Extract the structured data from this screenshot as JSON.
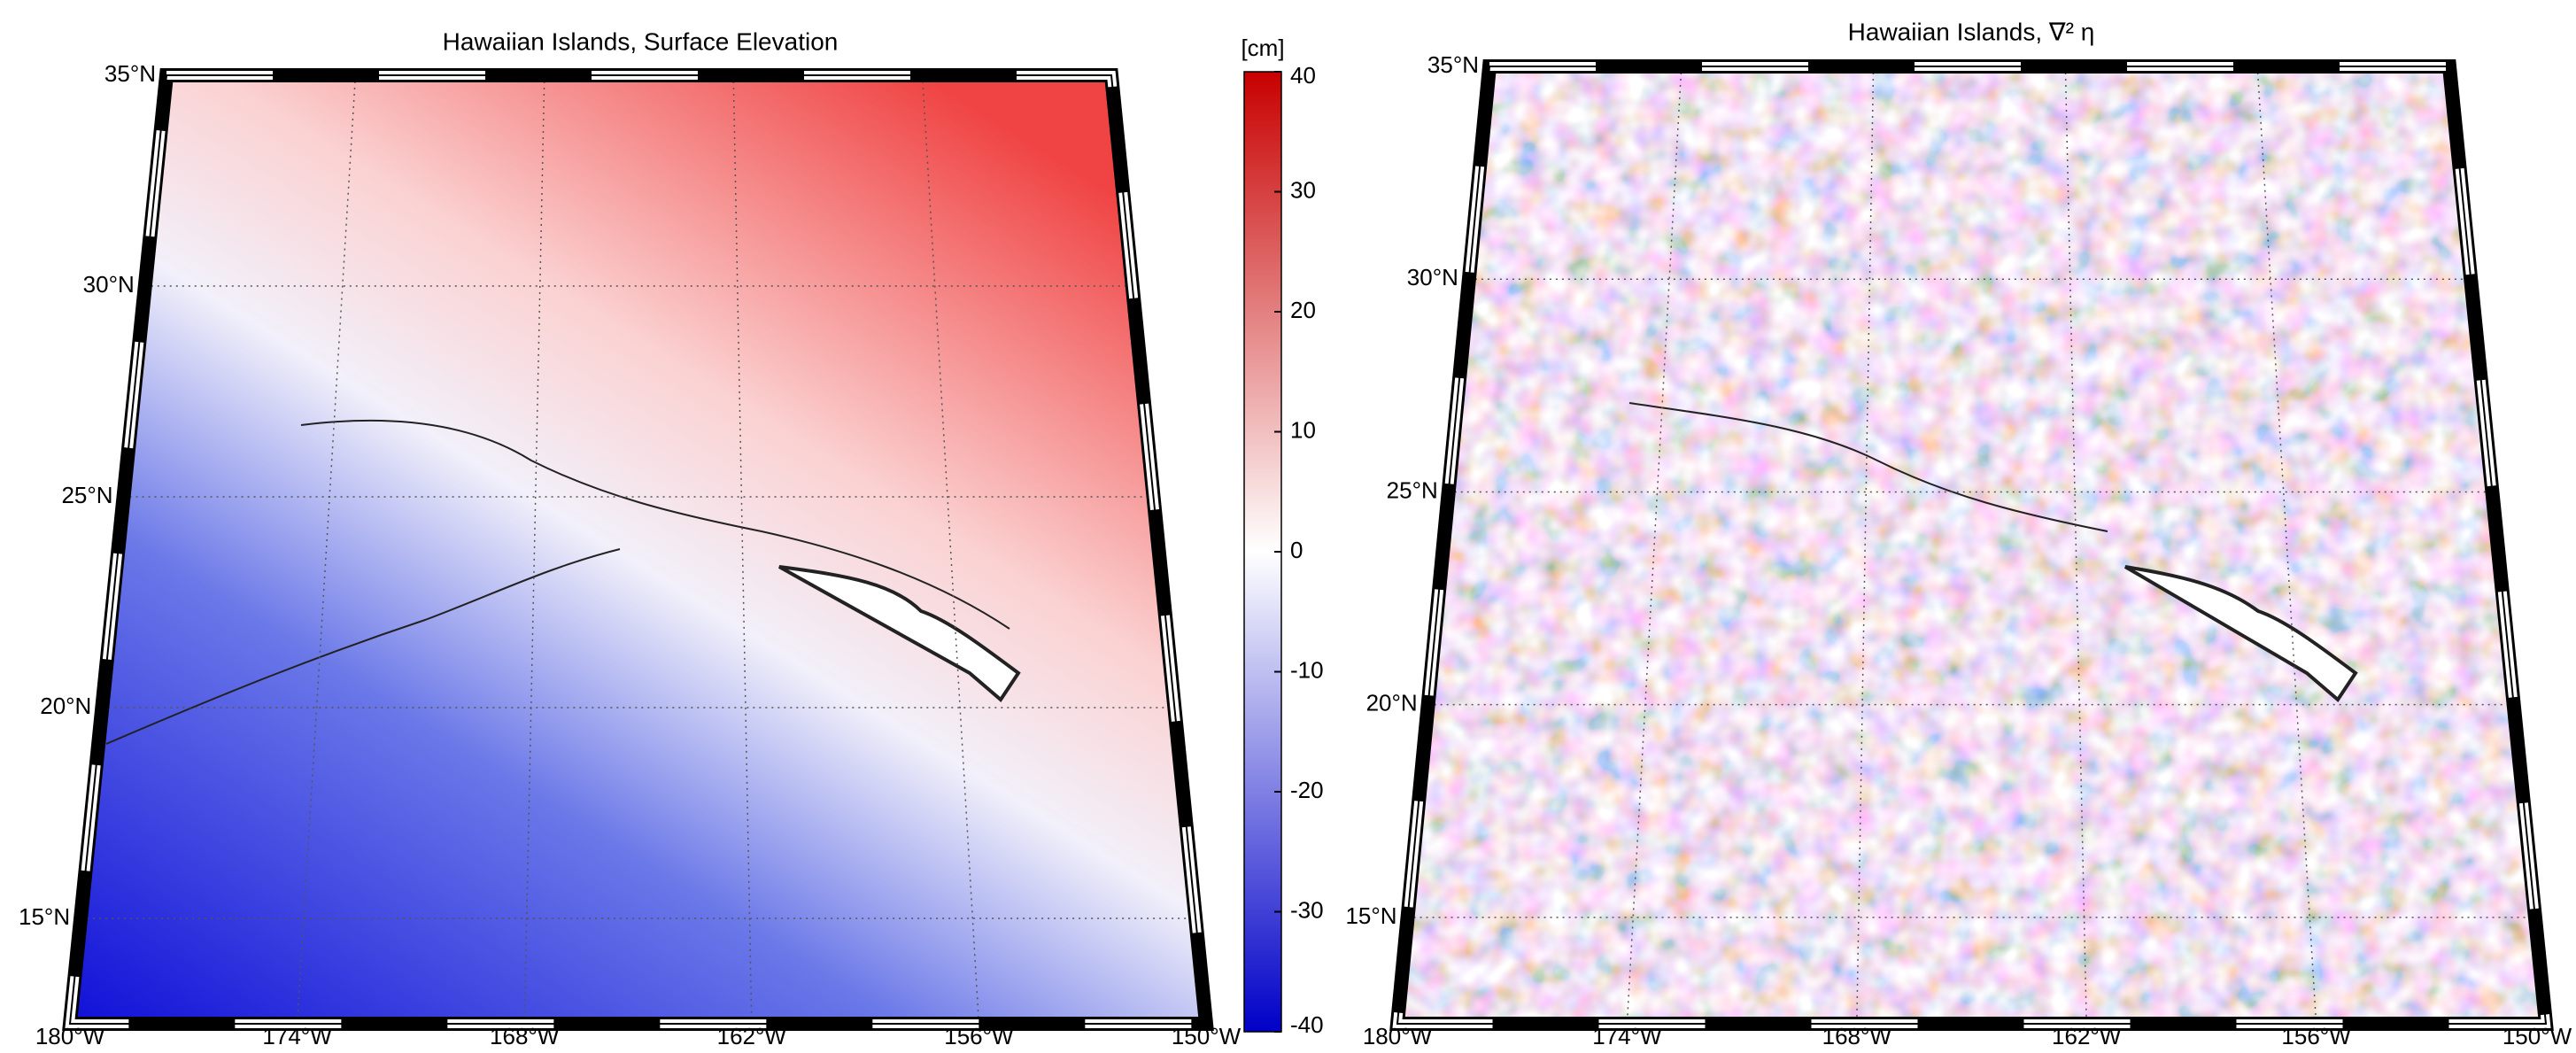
{
  "panels": [
    {
      "title": "Hawaiian Islands, Surface Elevation",
      "lat_labels": [
        "35°N",
        "30°N",
        "25°N",
        "20°N",
        "15°N"
      ],
      "lon_labels": [
        "180°W",
        "174°W",
        "168°W",
        "162°W",
        "156°W",
        "150°W"
      ]
    },
    {
      "title": "Hawaiian Islands, ∇² η",
      "lat_labels": [
        "35°N",
        "30°N",
        "25°N",
        "20°N",
        "15°N"
      ],
      "lon_labels": [
        "180°W",
        "174°W",
        "168°W",
        "162°W",
        "156°W",
        "150°W"
      ]
    }
  ],
  "colorbar": {
    "label": "[cm]",
    "lim": [
      -40,
      40
    ],
    "ticks": [
      -40,
      -30,
      -20,
      -10,
      0,
      10,
      20,
      30,
      40
    ]
  }
}
